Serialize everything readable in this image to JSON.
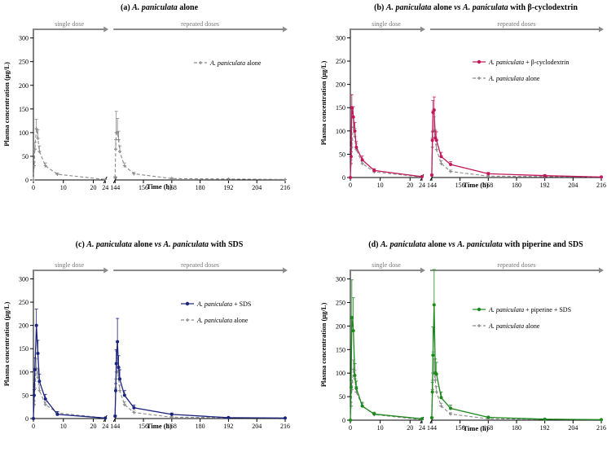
{
  "colors": {
    "alone": "#8a8a8a",
    "cyclodextrin": "#c2185b",
    "sds": "#1a237e",
    "piperine": "#1b8a1b",
    "dose_arrow": "#8a8a8a"
  },
  "common": {
    "x_label": "Time (h)",
    "y_label": "Plasma concentration (µg/L)",
    "single_dose_label": "single dose",
    "repeated_doses_label": "repeated doses",
    "ylim": [
      0,
      320
    ],
    "y_ticks": [
      "0",
      "50",
      "100",
      "150",
      "200",
      "250",
      "300"
    ],
    "x_ticks_segment1": [
      "0",
      "10",
      "20",
      "24"
    ],
    "x_ticks_segment2": [
      "144",
      "156",
      "168",
      "180",
      "192",
      "204",
      "216"
    ]
  },
  "chart_data": [
    {
      "type": "line",
      "title": "(a) A. paniculata alone",
      "xlabel": "Time (h)",
      "ylabel": "Plasma concentration (µg/L)",
      "ylim": [
        0,
        320
      ],
      "legend": "top-right",
      "series": [
        {
          "name": "A. paniculata alone",
          "color_key": "alone",
          "dashed": true,
          "x": [
            0,
            0.25,
            0.5,
            1,
            1.5,
            2,
            4,
            8,
            24,
            144,
            144.25,
            144.5,
            145,
            145.5,
            146,
            148,
            152,
            168,
            192,
            216
          ],
          "y": [
            0,
            30,
            65,
            108,
            88,
            60,
            30,
            12,
            1,
            5,
            65,
            100,
            100,
            85,
            60,
            30,
            13,
            3,
            2,
            1
          ],
          "err": [
            0,
            8,
            15,
            20,
            18,
            12,
            6,
            3,
            0,
            2,
            20,
            45,
            30,
            18,
            12,
            6,
            3,
            1,
            1,
            0
          ]
        }
      ]
    },
    {
      "type": "line",
      "title": "(b) A. paniculata alone vs A. paniculata with β-cyclodextrin",
      "xlabel": "Time (h)",
      "ylabel": "Plasma concentration (µg/L)",
      "ylim": [
        0,
        320
      ],
      "legend": "top-right",
      "series": [
        {
          "name": "A. paniculata + β-cyclodextrin",
          "color_key": "cyclodextrin",
          "dashed": false,
          "x": [
            0,
            0.25,
            0.5,
            1,
            1.5,
            2,
            4,
            8,
            24,
            144,
            144.25,
            144.5,
            145,
            145.5,
            146,
            148,
            152,
            168,
            192,
            216
          ],
          "y": [
            0,
            45,
            150,
            130,
            100,
            65,
            38,
            15,
            2,
            5,
            80,
            140,
            145,
            85,
            80,
            45,
            28,
            8,
            4,
            1
          ],
          "err": [
            0,
            10,
            28,
            22,
            18,
            12,
            8,
            4,
            0,
            2,
            18,
            25,
            28,
            15,
            18,
            9,
            6,
            3,
            2,
            0
          ]
        },
        {
          "name": "A. paniculata alone",
          "color_key": "alone",
          "dashed": true,
          "x": [
            0,
            0.25,
            0.5,
            1,
            1.5,
            2,
            4,
            8,
            24,
            144,
            144.25,
            144.5,
            145,
            145.5,
            146,
            148,
            152,
            168,
            192,
            216
          ],
          "y": [
            0,
            30,
            65,
            108,
            88,
            60,
            30,
            12,
            1,
            5,
            65,
            100,
            100,
            85,
            60,
            30,
            13,
            3,
            2,
            1
          ],
          "err": [
            0,
            8,
            15,
            20,
            18,
            12,
            6,
            3,
            0,
            2,
            20,
            45,
            30,
            18,
            12,
            6,
            3,
            1,
            1,
            0
          ]
        }
      ]
    },
    {
      "type": "line",
      "title": "(c) A. paniculata alone vs A. paniculata with SDS",
      "xlabel": "Time (h)",
      "ylabel": "Plasma concentration (µg/L)",
      "ylim": [
        0,
        320
      ],
      "legend": "top-right",
      "series": [
        {
          "name": "A. paniculata + SDS",
          "color_key": "sds",
          "dashed": false,
          "x": [
            0,
            0.25,
            0.5,
            1,
            1.5,
            2,
            4,
            8,
            24,
            144,
            144.25,
            144.5,
            145,
            145.5,
            146,
            148,
            152,
            168,
            192,
            216
          ],
          "y": [
            0,
            50,
            105,
            200,
            140,
            80,
            42,
            9,
            1,
            5,
            60,
            118,
            165,
            110,
            85,
            50,
            23,
            9,
            2,
            1
          ],
          "err": [
            0,
            12,
            25,
            35,
            28,
            15,
            10,
            6,
            0,
            2,
            15,
            30,
            50,
            25,
            20,
            10,
            6,
            3,
            1,
            0
          ]
        },
        {
          "name": "A. paniculata alone",
          "color_key": "alone",
          "dashed": true,
          "x": [
            0,
            0.25,
            0.5,
            1,
            1.5,
            2,
            4,
            8,
            24,
            144,
            144.25,
            144.5,
            145,
            145.5,
            146,
            148,
            152,
            168,
            192,
            216
          ],
          "y": [
            0,
            30,
            65,
            108,
            88,
            60,
            30,
            12,
            1,
            5,
            65,
            100,
            100,
            85,
            60,
            30,
            13,
            3,
            2,
            1
          ],
          "err": [
            0,
            8,
            15,
            20,
            18,
            12,
            6,
            3,
            0,
            2,
            20,
            45,
            30,
            18,
            12,
            6,
            3,
            1,
            1,
            0
          ]
        }
      ]
    },
    {
      "type": "line",
      "title": "(d) A. paniculata alone vs A. paniculata with piperine and SDS",
      "xlabel": "Time (h)",
      "ylabel": "Plasma concentration (µg/L)",
      "ylim": [
        0,
        320
      ],
      "legend": "top-right",
      "series": [
        {
          "name": "A. paniculata + piperine + SDS",
          "color_key": "piperine",
          "dashed": false,
          "x": [
            0,
            0.25,
            0.5,
            1,
            1.5,
            2,
            4,
            8,
            24,
            144,
            144.25,
            144.5,
            145,
            145.5,
            146,
            148,
            152,
            168,
            192,
            216
          ],
          "y": [
            0,
            70,
            218,
            190,
            95,
            68,
            30,
            13,
            3,
            5,
            60,
            138,
            245,
            100,
            98,
            48,
            25,
            6,
            2,
            1
          ],
          "err": [
            0,
            15,
            80,
            70,
            25,
            15,
            8,
            4,
            1,
            2,
            20,
            60,
            75,
            30,
            25,
            12,
            7,
            2,
            1,
            0
          ]
        },
        {
          "name": "A. paniculata alone",
          "color_key": "alone",
          "dashed": true,
          "x": [
            0,
            0.25,
            0.5,
            1,
            1.5,
            2,
            4,
            8,
            24,
            144,
            144.25,
            144.5,
            145,
            145.5,
            146,
            148,
            152,
            168,
            192,
            216
          ],
          "y": [
            0,
            30,
            65,
            108,
            88,
            60,
            30,
            12,
            1,
            5,
            65,
            100,
            100,
            85,
            60,
            30,
            13,
            3,
            2,
            1
          ],
          "err": [
            0,
            8,
            15,
            20,
            18,
            12,
            6,
            3,
            0,
            2,
            20,
            45,
            30,
            18,
            12,
            6,
            3,
            1,
            1,
            0
          ]
        }
      ]
    }
  ]
}
